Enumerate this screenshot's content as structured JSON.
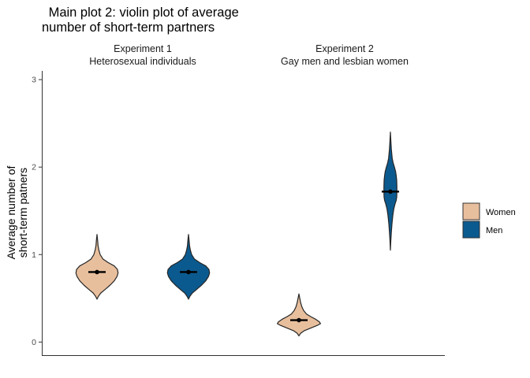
{
  "chart_data": {
    "type": "violin",
    "title": [
      " Main plot 2: violin plot of average",
      "number of short-term partners"
    ],
    "xlabel": "",
    "ylabel": [
      "Average number of",
      "short-term patners"
    ],
    "ylim": [
      -0.15,
      3.1
    ],
    "yticks": [
      0,
      1,
      2,
      3
    ],
    "grid": false,
    "legend_position": "right",
    "groups": [
      {
        "label": [
          "Experiment 1",
          "Heterosexual individuals"
        ],
        "violins": [
          {
            "series": "Women",
            "mean": 0.8,
            "min": 0.49,
            "max": 1.23,
            "width": 0.39,
            "profile": [
              [
                0.49,
                0.0
              ],
              [
                0.52,
                0.06
              ],
              [
                0.56,
                0.18
              ],
              [
                0.6,
                0.38
              ],
              [
                0.65,
                0.62
              ],
              [
                0.7,
                0.82
              ],
              [
                0.75,
                0.95
              ],
              [
                0.79,
                1.0
              ],
              [
                0.83,
                0.97
              ],
              [
                0.87,
                0.82
              ],
              [
                0.91,
                0.52
              ],
              [
                0.95,
                0.28
              ],
              [
                1.0,
                0.15
              ],
              [
                1.05,
                0.09
              ],
              [
                1.1,
                0.05
              ],
              [
                1.16,
                0.03
              ],
              [
                1.23,
                0.0
              ]
            ]
          },
          {
            "series": "Men",
            "mean": 0.8,
            "min": 0.49,
            "max": 1.23,
            "width": 0.39,
            "profile": [
              [
                0.49,
                0.0
              ],
              [
                0.52,
                0.06
              ],
              [
                0.56,
                0.18
              ],
              [
                0.6,
                0.38
              ],
              [
                0.65,
                0.62
              ],
              [
                0.7,
                0.82
              ],
              [
                0.75,
                0.95
              ],
              [
                0.79,
                1.0
              ],
              [
                0.83,
                0.97
              ],
              [
                0.87,
                0.82
              ],
              [
                0.91,
                0.52
              ],
              [
                0.95,
                0.28
              ],
              [
                1.0,
                0.15
              ],
              [
                1.05,
                0.09
              ],
              [
                1.1,
                0.05
              ],
              [
                1.16,
                0.03
              ],
              [
                1.23,
                0.0
              ]
            ]
          }
        ]
      },
      {
        "label": [
          "Experiment 2",
          "Gay men and lesbian women"
        ],
        "violins": [
          {
            "series": "Women",
            "mean": 0.25,
            "min": 0.07,
            "max": 0.55,
            "width": 0.4,
            "profile": [
              [
                0.07,
                0.0
              ],
              [
                0.1,
                0.08
              ],
              [
                0.13,
                0.25
              ],
              [
                0.16,
                0.55
              ],
              [
                0.19,
                0.85
              ],
              [
                0.21,
                1.0
              ],
              [
                0.23,
                0.95
              ],
              [
                0.26,
                0.78
              ],
              [
                0.29,
                0.55
              ],
              [
                0.32,
                0.35
              ],
              [
                0.36,
                0.22
              ],
              [
                0.4,
                0.14
              ],
              [
                0.45,
                0.08
              ],
              [
                0.5,
                0.04
              ],
              [
                0.55,
                0.0
              ]
            ]
          },
          {
            "series": "Men",
            "mean": 1.72,
            "min": 1.05,
            "max": 2.4,
            "width": 0.12,
            "profile": [
              [
                1.05,
                0.0
              ],
              [
                1.15,
                0.06
              ],
              [
                1.25,
                0.14
              ],
              [
                1.35,
                0.24
              ],
              [
                1.45,
                0.38
              ],
              [
                1.52,
                0.52
              ],
              [
                1.58,
                0.72
              ],
              [
                1.62,
                0.9
              ],
              [
                1.66,
                0.98
              ],
              [
                1.72,
                1.0
              ],
              [
                1.78,
                1.0
              ],
              [
                1.85,
                0.97
              ],
              [
                1.9,
                0.9
              ],
              [
                1.95,
                0.8
              ],
              [
                2.0,
                0.62
              ],
              [
                2.05,
                0.42
              ],
              [
                2.1,
                0.28
              ],
              [
                2.2,
                0.15
              ],
              [
                2.3,
                0.07
              ],
              [
                2.4,
                0.0
              ]
            ]
          }
        ]
      }
    ],
    "legend": [
      {
        "name": "Women",
        "color": "#E8BF9D"
      },
      {
        "name": "Men",
        "color": "#0B5A8F"
      }
    ],
    "colors": {
      "Women": "#E8BF9D",
      "Men": "#0B5A8F",
      "outline": "#262626",
      "mean": "#000000"
    }
  }
}
